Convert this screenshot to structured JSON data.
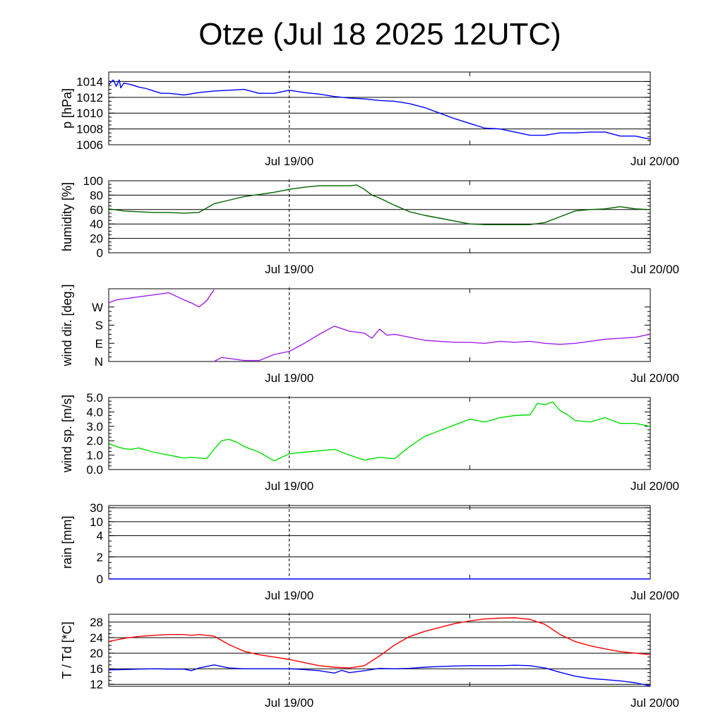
{
  "title": "Otze (Jul 18 2025 12UTC)",
  "x_ticks": [
    {
      "label": "Jul 19/00",
      "hour": 12
    },
    {
      "label": "Jul 20/00",
      "hour": 36
    }
  ],
  "x_minor_hour": 24,
  "x_range_hours": [
    0,
    36
  ],
  "chart_data": [
    {
      "type": "line",
      "ylabel": "p [hPa]",
      "ylim": [
        1006,
        1015.2
      ],
      "yticks": [
        1006,
        1008,
        1010,
        1012,
        1014
      ],
      "ytick_labels": [
        "1006",
        "1008",
        "1010",
        "1012",
        "1014"
      ],
      "grid": true,
      "series": [
        {
          "color": "#0000ff",
          "x": [
            0,
            0.3,
            0.5,
            0.7,
            0.8,
            1,
            1.5,
            2,
            2.5,
            3,
            3.5,
            4,
            4.5,
            5,
            6,
            7,
            8,
            9,
            10,
            11,
            12,
            13,
            14,
            15,
            16,
            17,
            18,
            19,
            20,
            21,
            22,
            23,
            24,
            25,
            26,
            27,
            28,
            29,
            30,
            31,
            32,
            33,
            34,
            35,
            36
          ],
          "y": [
            1013.6,
            1014.2,
            1013.4,
            1014.2,
            1013.2,
            1013.8,
            1013.6,
            1013.3,
            1013.1,
            1012.8,
            1012.5,
            1012.5,
            1012.4,
            1012.3,
            1012.6,
            1012.8,
            1012.9,
            1013.0,
            1012.5,
            1012.5,
            1012.9,
            1012.6,
            1012.4,
            1012.1,
            1011.9,
            1011.8,
            1011.6,
            1011.5,
            1011.2,
            1010.7,
            1010.0,
            1009.3,
            1008.7,
            1008.1,
            1008.0,
            1007.6,
            1007.2,
            1007.2,
            1007.5,
            1007.5,
            1007.6,
            1007.6,
            1007.1,
            1007.1,
            1006.7
          ]
        }
      ]
    },
    {
      "type": "line",
      "ylabel": "humidity [%]",
      "ylim": [
        0,
        100
      ],
      "yticks": [
        0,
        20,
        40,
        60,
        80,
        100
      ],
      "ytick_labels": [
        "0",
        "20",
        "40",
        "60",
        "80",
        "100"
      ],
      "grid": true,
      "series": [
        {
          "color": "#006400",
          "x": [
            0,
            1,
            2,
            3,
            4,
            5,
            6,
            7,
            8,
            9,
            10,
            11,
            12,
            13,
            14,
            15,
            16,
            16.5,
            17,
            17.5,
            18,
            19,
            20,
            21,
            22,
            23,
            24,
            25,
            26,
            27,
            28,
            29,
            30,
            31,
            32,
            33,
            34,
            35,
            36
          ],
          "y": [
            61,
            58,
            57,
            56,
            56,
            55,
            56,
            68,
            73,
            78,
            81,
            84,
            88,
            91,
            93,
            93,
            93,
            94,
            88,
            80,
            76,
            66,
            57,
            52,
            48,
            44,
            40,
            39,
            39,
            39,
            39,
            42,
            50,
            58,
            60,
            61,
            64,
            61,
            60
          ]
        }
      ]
    },
    {
      "type": "line",
      "ylabel": "wind dir. [deg.]",
      "ylim": [
        0,
        360
      ],
      "yticks": [
        0,
        90,
        180,
        270
      ],
      "ytick_labels": [
        "N",
        "E",
        "S",
        "W"
      ],
      "grid": false,
      "series": [
        {
          "color": "#a020f0",
          "x": [
            0,
            0.5,
            1,
            2,
            3,
            4,
            5,
            5.5,
            6,
            6.5,
            7
          ],
          "y": [
            290,
            305,
            310,
            320,
            330,
            340,
            305,
            290,
            270,
            300,
            355
          ]
        },
        {
          "color": "#a020f0",
          "x": [
            7,
            7.5,
            8,
            9,
            10,
            11,
            12,
            13,
            14,
            15,
            16,
            17,
            17.5,
            18,
            18.5,
            19,
            20,
            21,
            22,
            23,
            24,
            25,
            26,
            27,
            28,
            29,
            30,
            31,
            32,
            33,
            34,
            35,
            36
          ],
          "y": [
            0,
            20,
            15,
            5,
            5,
            35,
            50,
            90,
            135,
            175,
            150,
            140,
            115,
            160,
            130,
            135,
            120,
            105,
            100,
            95,
            95,
            90,
            100,
            95,
            100,
            90,
            85,
            90,
            100,
            110,
            115,
            120,
            135
          ]
        }
      ]
    },
    {
      "type": "line",
      "ylabel": "wind sp. [m/s]",
      "ylim": [
        0,
        5
      ],
      "yticks": [
        0,
        1,
        2,
        3,
        4,
        5
      ],
      "ytick_labels": [
        "0.0",
        "1.0",
        "2.0",
        "3.0",
        "4.0",
        "5.0"
      ],
      "grid": false,
      "series": [
        {
          "color": "#00e000",
          "x": [
            0,
            0.5,
            1,
            1.5,
            2,
            3,
            4,
            5,
            5.5,
            6,
            6.5,
            7,
            7.5,
            8,
            8.5,
            9,
            10,
            11,
            12,
            13,
            14,
            15,
            16,
            17,
            18,
            19,
            20,
            21,
            22,
            23,
            24,
            25,
            26,
            27,
            28,
            28.5,
            29,
            29.5,
            30,
            30.5,
            31,
            32,
            33,
            34,
            35,
            36
          ],
          "y": [
            1.8,
            1.6,
            1.45,
            1.4,
            1.5,
            1.2,
            1.0,
            0.8,
            0.85,
            0.8,
            0.75,
            1.4,
            2.0,
            2.1,
            1.9,
            1.6,
            1.2,
            0.6,
            1.1,
            1.2,
            1.3,
            1.4,
            1.0,
            0.65,
            0.85,
            0.75,
            1.6,
            2.3,
            2.7,
            3.1,
            3.5,
            3.3,
            3.6,
            3.75,
            3.8,
            4.6,
            4.5,
            4.7,
            4.1,
            3.8,
            3.4,
            3.3,
            3.6,
            3.2,
            3.2,
            3.0
          ]
        }
      ]
    },
    {
      "type": "line",
      "ylabel": "rain [mm]",
      "yticks": [
        0,
        2,
        4,
        10,
        30
      ],
      "ytick_labels": [
        "0",
        "2",
        "4",
        "10",
        "30"
      ],
      "grid": true,
      "series": [
        {
          "color": "#0000ff",
          "x": [
            0,
            36
          ],
          "y": [
            0,
            0
          ]
        }
      ]
    },
    {
      "type": "line",
      "ylabel": "T / Td [*C]",
      "ylim": [
        11.5,
        30
      ],
      "yticks": [
        12,
        16,
        20,
        24,
        28
      ],
      "ytick_labels": [
        "12",
        "16",
        "20",
        "24",
        "28"
      ],
      "grid": true,
      "series": [
        {
          "color": "#ff0000",
          "x": [
            0,
            1,
            2,
            3,
            4,
            5,
            5.5,
            6,
            6.5,
            7,
            8,
            9,
            10,
            11,
            12,
            13,
            14,
            15,
            16,
            17,
            18,
            19,
            20,
            21,
            22,
            23,
            24,
            25,
            26,
            27,
            28,
            29,
            30,
            31,
            32,
            33,
            34,
            35,
            36
          ],
          "y": [
            23,
            23.8,
            24.3,
            24.6,
            24.8,
            24.8,
            24.6,
            24.8,
            24.6,
            24.4,
            22.2,
            20.5,
            19.6,
            19.0,
            18.4,
            17.6,
            16.8,
            16.4,
            16.2,
            16.8,
            19.3,
            22.1,
            24.3,
            25.6,
            26.6,
            27.6,
            28.3,
            28.8,
            29.0,
            29.1,
            28.7,
            27.4,
            24.8,
            23.0,
            21.9,
            21.1,
            20.4,
            20.0,
            19.6
          ]
        },
        {
          "color": "#0000ff",
          "x": [
            0,
            1,
            2,
            3,
            4,
            5,
            5.5,
            6,
            6.5,
            7,
            8,
            9,
            10,
            11,
            12,
            13,
            14,
            15,
            15.5,
            16,
            17,
            18,
            19,
            20,
            21,
            22,
            23,
            24,
            25,
            26,
            27,
            28,
            29,
            30,
            31,
            32,
            33,
            34,
            35,
            36
          ],
          "y": [
            15.7,
            15.8,
            15.9,
            16.0,
            15.9,
            15.9,
            15.5,
            16.2,
            16.6,
            17.0,
            16.2,
            16.0,
            16.0,
            16.0,
            16.0,
            15.8,
            15.5,
            14.9,
            15.6,
            15.0,
            15.5,
            16.1,
            16.0,
            16.1,
            16.4,
            16.6,
            16.7,
            16.8,
            16.8,
            16.8,
            16.9,
            16.8,
            16.2,
            15.1,
            14.1,
            13.5,
            13.2,
            12.9,
            12.4,
            11.6
          ]
        }
      ]
    }
  ]
}
